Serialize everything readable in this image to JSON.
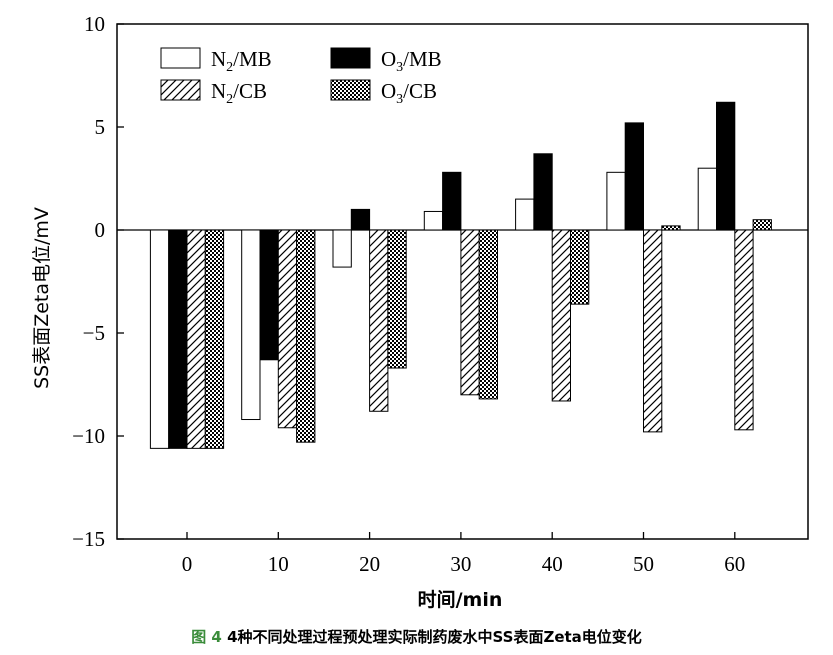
{
  "caption": {
    "label": "图 4",
    "text": "4种不同处理过程预处理实际制药废水中SS表面Zeta电位变化"
  },
  "chart_data": {
    "type": "bar",
    "xlabel": "时间/min",
    "ylabel": "SS表面Zeta电位/mV",
    "ylim": [
      -15,
      10
    ],
    "yticks": [
      -15,
      -10,
      -5,
      0,
      5,
      10
    ],
    "categories": [
      "0",
      "10",
      "20",
      "30",
      "40",
      "50",
      "60"
    ],
    "series": [
      {
        "name": "N₂/MB",
        "base": "N",
        "sub": "2",
        "suffix": "/MB",
        "pattern": "empty",
        "values": [
          -10.6,
          -9.2,
          -1.8,
          0.9,
          1.5,
          2.8,
          3.0
        ]
      },
      {
        "name": "O₃/MB",
        "base": "O",
        "sub": "3",
        "suffix": "/MB",
        "pattern": "solid",
        "values": [
          -10.6,
          -6.3,
          1.0,
          2.8,
          3.7,
          5.2,
          6.2
        ]
      },
      {
        "name": "N₂/CB",
        "base": "N",
        "sub": "2",
        "suffix": "/CB",
        "pattern": "hatch",
        "values": [
          -10.6,
          -9.6,
          -8.8,
          -8.0,
          -8.3,
          -9.8,
          -9.7
        ]
      },
      {
        "name": "O₃/CB",
        "base": "O",
        "sub": "3",
        "suffix": "/CB",
        "pattern": "checker",
        "values": [
          -10.6,
          -10.3,
          -6.7,
          -8.2,
          -3.6,
          0.2,
          0.5
        ]
      }
    ],
    "legend_position": "top-left",
    "colors": {
      "axis": "#000000",
      "solid": "#000000",
      "fill": "#ffffff"
    }
  }
}
